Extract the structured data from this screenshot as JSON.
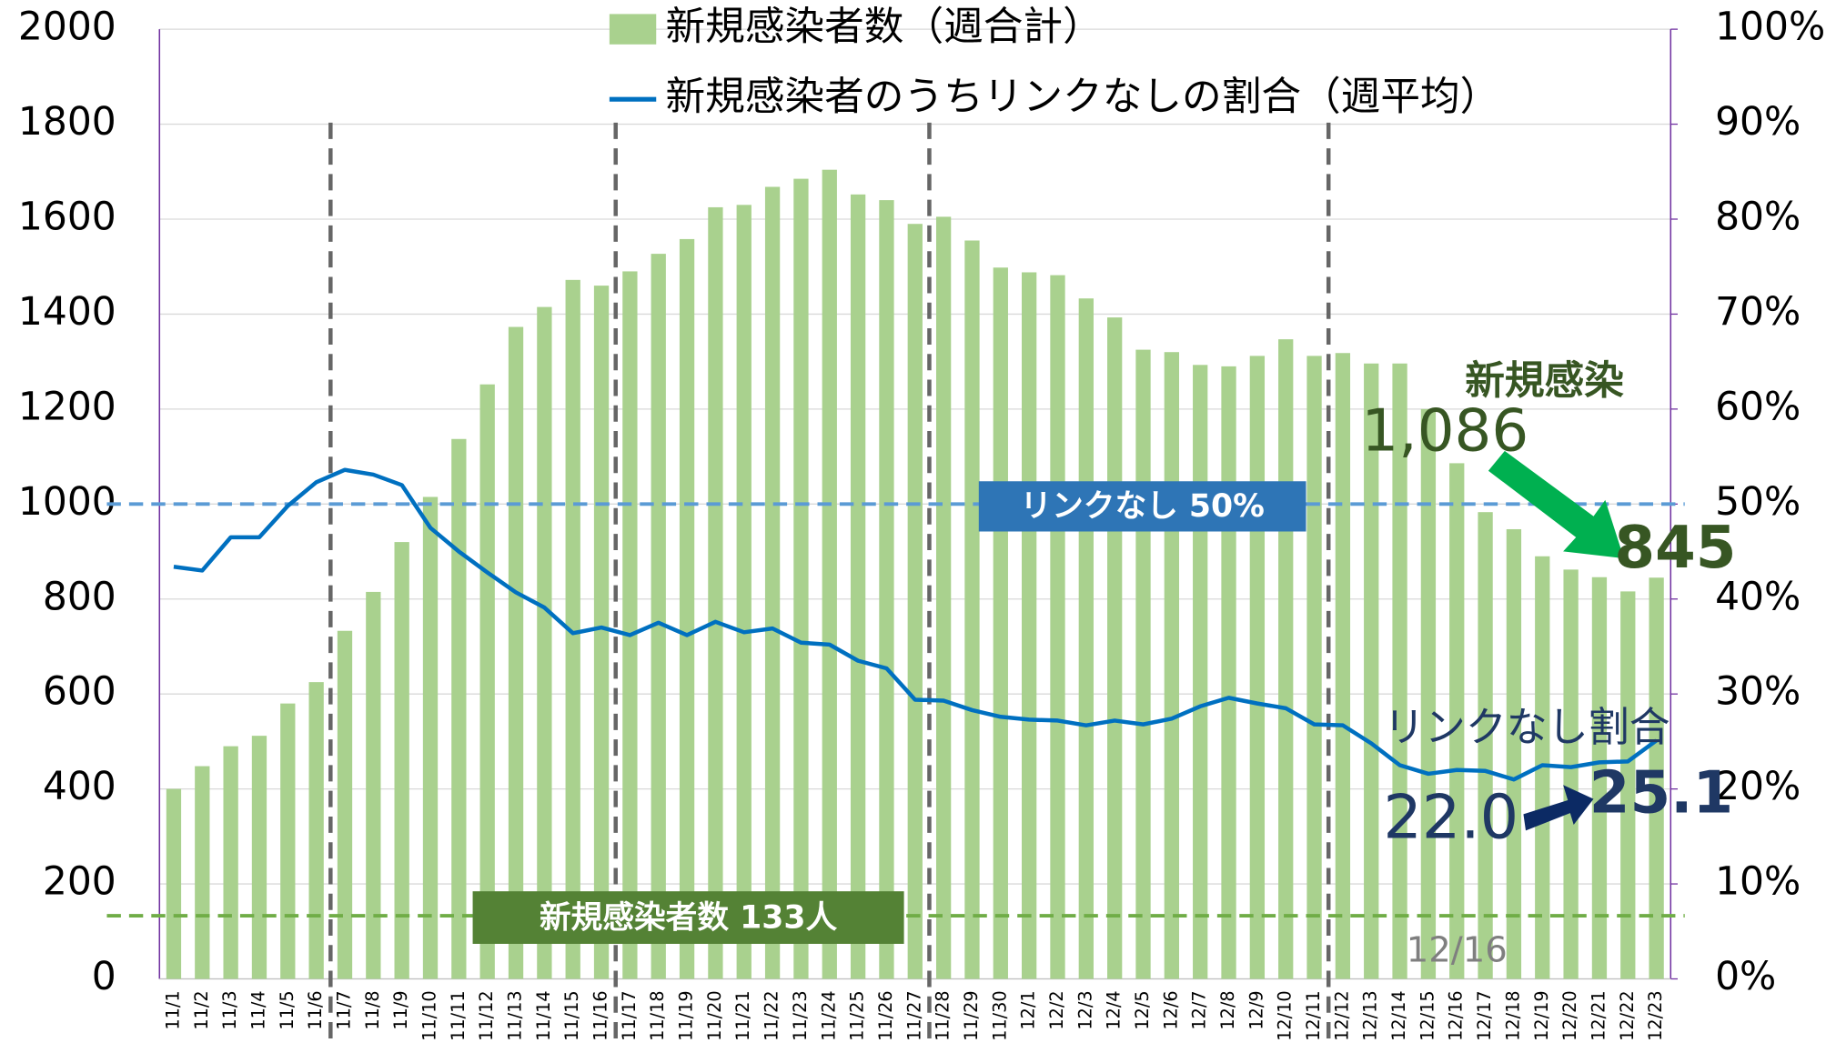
{
  "chart_data": {
    "type": "bar+line",
    "categories": [
      "11/1",
      "11/2",
      "11/3",
      "11/4",
      "11/5",
      "11/6",
      "11/7",
      "11/8",
      "11/9",
      "11/10",
      "11/11",
      "11/12",
      "11/13",
      "11/14",
      "11/15",
      "11/16",
      "11/17",
      "11/18",
      "11/19",
      "11/20",
      "11/21",
      "11/22",
      "11/23",
      "11/24",
      "11/25",
      "11/26",
      "11/27",
      "11/28",
      "11/29",
      "11/30",
      "12/1",
      "12/2",
      "12/3",
      "12/4",
      "12/5",
      "12/6",
      "12/7",
      "12/8",
      "12/9",
      "12/10",
      "12/11",
      "12/12",
      "12/13",
      "12/14",
      "12/15",
      "12/16",
      "12/17",
      "12/18",
      "12/19",
      "12/20",
      "12/21",
      "12/22",
      "12/23"
    ],
    "series": [
      {
        "name": "新規感染者数（週合計）",
        "type": "bar",
        "color": "#a9d18e",
        "values": [
          400,
          448,
          490,
          512,
          580,
          625,
          733,
          815,
          920,
          1015,
          1137,
          1252,
          1373,
          1415,
          1472,
          1460,
          1490,
          1527,
          1558,
          1625,
          1630,
          1668,
          1685,
          1704,
          1652,
          1640,
          1590,
          1605,
          1555,
          1498,
          1488,
          1482,
          1433,
          1393,
          1325,
          1320,
          1293,
          1290,
          1312,
          1347,
          1312,
          1318,
          1296,
          1296,
          1200,
          1086,
          983,
          947,
          890,
          862,
          846,
          816,
          845
        ]
      },
      {
        "name": "新規感染者のうちリンクなしの割合（週平均）",
        "type": "line",
        "axis": "y2",
        "color": "#0070c0",
        "values": [
          43.4,
          43.0,
          46.5,
          46.5,
          49.8,
          52.3,
          53.6,
          53.1,
          52.0,
          47.5,
          45.0,
          42.8,
          40.7,
          39.1,
          36.4,
          37.0,
          36.2,
          37.5,
          36.2,
          37.6,
          36.5,
          36.9,
          35.4,
          35.2,
          33.5,
          32.7,
          29.4,
          29.3,
          28.3,
          27.6,
          27.3,
          27.2,
          26.7,
          27.2,
          26.8,
          27.4,
          28.7,
          29.6,
          29.0,
          28.5,
          26.8,
          26.7,
          24.8,
          22.5,
          21.6,
          22.0,
          21.9,
          21.0,
          22.5,
          22.3,
          22.8,
          22.9,
          25.1
        ]
      }
    ],
    "ylim": [
      0,
      2000
    ],
    "yticks": [
      0,
      200,
      400,
      600,
      800,
      1000,
      1200,
      1400,
      1600,
      1800,
      2000
    ],
    "y2lim": [
      0,
      100
    ],
    "y2ticks": [
      {
        "value": 0,
        "label": "0%"
      },
      {
        "value": 10,
        "label": "10%"
      },
      {
        "value": 20,
        "label": "20%"
      },
      {
        "value": 30,
        "label": "30%"
      },
      {
        "value": 40,
        "label": "40%"
      },
      {
        "value": 50,
        "label": "50%"
      },
      {
        "value": 60,
        "label": "60%"
      },
      {
        "value": 70,
        "label": "70%"
      },
      {
        "value": 80,
        "label": "80%"
      },
      {
        "value": 90,
        "label": "90%"
      },
      {
        "value": 100,
        "label": "100%"
      }
    ],
    "grid": true,
    "legend": "top",
    "event_lines": [
      "11/7",
      "11/17",
      "11/28",
      "12/12"
    ],
    "ref_lines": [
      {
        "label": "リンクなし 50%",
        "value": 50,
        "axis": "y2",
        "color": "#5b9bd5",
        "box_color": "#2e75b6"
      },
      {
        "label": "新規感染者数 133人",
        "value": 133,
        "color": "#70ad47",
        "box_color": "#548235"
      }
    ],
    "annotations": [
      "新規感染",
      "1,086",
      "845",
      "リンクなし割合",
      "22.0",
      "25.1",
      "12/16"
    ]
  }
}
